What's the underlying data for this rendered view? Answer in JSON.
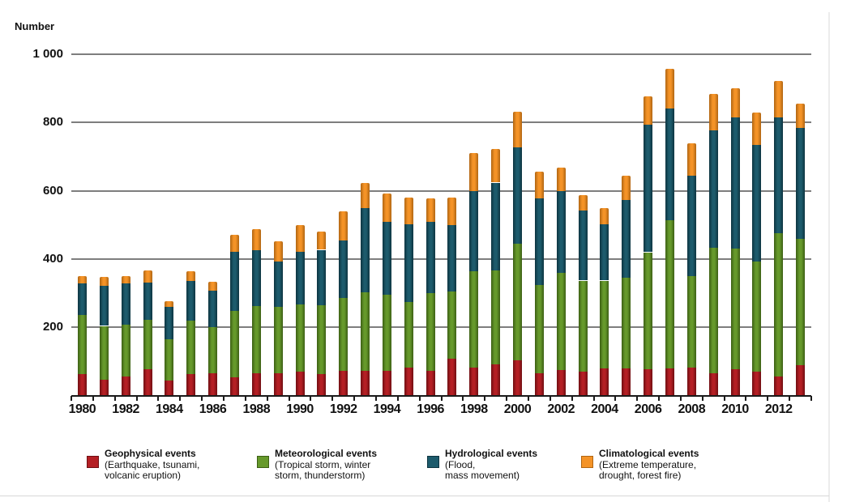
{
  "axis_label": "Number",
  "chart_data": {
    "type": "bar",
    "stacked": true,
    "title": "",
    "xlabel": "",
    "ylabel": "Number",
    "ylim": [
      0,
      1000
    ],
    "grid": true,
    "legend_position": "bottom",
    "yticks": [
      200,
      400,
      600,
      800,
      1000
    ],
    "ytick_labels": [
      "200",
      "400",
      "600",
      "800",
      "1 000"
    ],
    "x": [
      1980,
      1981,
      1982,
      1983,
      1984,
      1985,
      1986,
      1987,
      1988,
      1989,
      1990,
      1991,
      1992,
      1993,
      1994,
      1995,
      1996,
      1997,
      1998,
      1999,
      2000,
      2001,
      2002,
      2003,
      2004,
      2005,
      2006,
      2007,
      2008,
      2009,
      2010,
      2011,
      2012,
      2013
    ],
    "x_tick_labels": [
      "1980",
      "1982",
      "1984",
      "1986",
      "1988",
      "1990",
      "1992",
      "1994",
      "1996",
      "1998",
      "2000",
      "2002",
      "2004",
      "2006",
      "2008",
      "2010",
      "2012"
    ],
    "series": [
      {
        "name": "Geophysical events",
        "color": "#b41f24",
        "edge_color": "#6f0e12",
        "values": [
          63,
          47,
          55,
          77,
          45,
          64,
          65,
          54,
          65,
          65,
          71,
          62,
          73,
          73,
          73,
          81,
          73,
          108,
          81,
          91,
          103,
          66,
          75,
          71,
          79,
          79,
          77,
          80,
          83,
          65,
          77,
          70,
          55,
          89
        ]
      },
      {
        "name": "Meteorological events",
        "color": "#66992b",
        "edge_color": "#3c5f14",
        "values": [
          174,
          157,
          153,
          144,
          120,
          156,
          136,
          195,
          198,
          195,
          195,
          203,
          213,
          230,
          223,
          193,
          227,
          198,
          284,
          276,
          341,
          258,
          284,
          266,
          258,
          266,
          343,
          433,
          268,
          369,
          354,
          323,
          421,
          371
        ]
      },
      {
        "name": "Hydrological events",
        "color": "#1d5b6c",
        "edge_color": "#0d3440",
        "values": [
          91,
          117,
          121,
          110,
          94,
          115,
          107,
          172,
          163,
          132,
          156,
          162,
          169,
          246,
          214,
          228,
          208,
          194,
          233,
          257,
          283,
          253,
          239,
          206,
          165,
          229,
          374,
          329,
          293,
          342,
          383,
          341,
          340,
          324
        ]
      },
      {
        "name": "Climatological events",
        "color": "#f49327",
        "edge_color": "#b06512",
        "values": [
          23,
          26,
          22,
          35,
          17,
          30,
          26,
          50,
          61,
          59,
          77,
          53,
          84,
          74,
          82,
          79,
          71,
          81,
          113,
          99,
          104,
          80,
          71,
          44,
          47,
          70,
          83,
          116,
          95,
          109,
          87,
          96,
          107,
          71
        ]
      }
    ]
  },
  "legend": {
    "items": [
      {
        "label": "Geophysical events",
        "sublines": [
          "(Earthquake, tsunami,",
          "volcanic eruption)"
        ],
        "color": "#b41f24",
        "edge_color": "#6f0e12"
      },
      {
        "label": "Meteorological events",
        "sublines": [
          "(Tropical storm, winter",
          "storm, thunderstorm)"
        ],
        "color": "#66992b",
        "edge_color": "#3c5f14"
      },
      {
        "label": "Hydrological events",
        "sublines": [
          "(Flood,",
          "mass movement)"
        ],
        "color": "#1d5b6c",
        "edge_color": "#0d3440"
      },
      {
        "label": "Climatological events",
        "sublines": [
          "(Extreme temperature,",
          "drought, forest fire)"
        ],
        "color": "#f49327",
        "edge_color": "#b06512"
      }
    ]
  }
}
